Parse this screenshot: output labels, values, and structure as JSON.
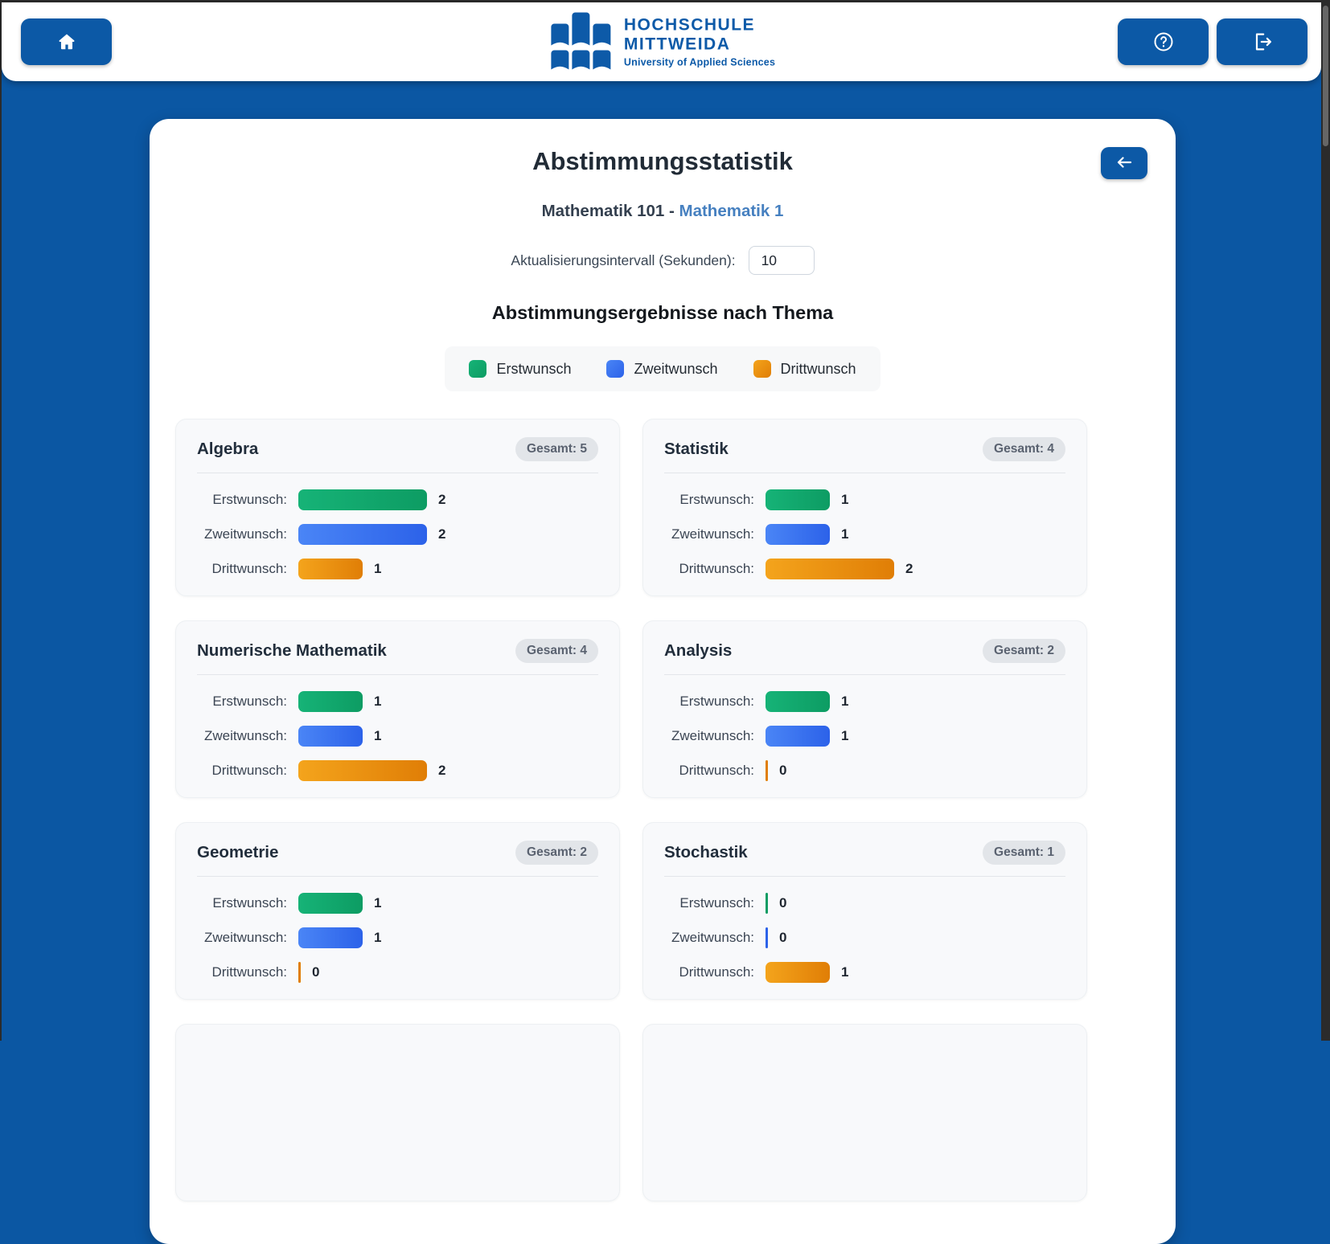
{
  "navbar": {
    "logo": {
      "line1": "HOCHSCHULE",
      "line2": "MITTWEIDA",
      "tagline": "University of Applied Sciences"
    }
  },
  "header": {
    "title": "Abstimmungsstatistik",
    "course": "Mathematik 101",
    "separator": " - ",
    "module": "Mathematik 1",
    "interval_label": "Aktualisierungsintervall (Sekunden):",
    "interval_value": "10",
    "section_heading": "Abstimmungsergebnisse nach Thema"
  },
  "legend": [
    {
      "label": "Erstwunsch",
      "color_from": "#16b377",
      "color_to": "#0d9c63"
    },
    {
      "label": "Zweitwunsch",
      "color_from": "#4a85f6",
      "color_to": "#2c62e9"
    },
    {
      "label": "Drittwunsch",
      "color_from": "#f4a41c",
      "color_to": "#e07e06"
    }
  ],
  "wish_labels": [
    "Erstwunsch:",
    "Zweitwunsch:",
    "Drittwunsch:"
  ],
  "topics": [
    {
      "name": "Algebra",
      "total_label": "Gesamt: 5",
      "values": [
        2,
        2,
        1
      ]
    },
    {
      "name": "Statistik",
      "total_label": "Gesamt: 4",
      "values": [
        1,
        1,
        2
      ]
    },
    {
      "name": "Numerische Mathematik",
      "total_label": "Gesamt: 4",
      "values": [
        1,
        1,
        2
      ]
    },
    {
      "name": "Analysis",
      "total_label": "Gesamt: 2",
      "values": [
        1,
        1,
        0
      ]
    },
    {
      "name": "Geometrie",
      "total_label": "Gesamt: 2",
      "values": [
        1,
        1,
        0
      ]
    },
    {
      "name": "Stochastik",
      "total_label": "Gesamt: 1",
      "values": [
        0,
        0,
        1
      ]
    }
  ],
  "grid": {
    "partially_visible_empty_cards": 2
  },
  "colors": {
    "page_background": "#0b57a3",
    "brand_blue": "#0d5aa8",
    "button_blue": "#0c59a6",
    "course_text": "#333f4e",
    "module_text": "#4680c0"
  }
}
